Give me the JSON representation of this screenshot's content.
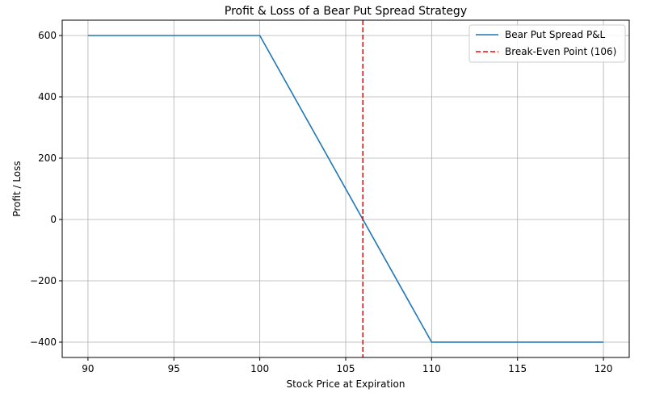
{
  "chart_data": {
    "type": "line",
    "title": "Profit & Loss of a Bear Put Spread Strategy",
    "xlabel": "Stock Price at Expiration",
    "ylabel": "Profit / Loss",
    "xlim": [
      88.5,
      121.5
    ],
    "ylim": [
      -450,
      650
    ],
    "x_ticks": [
      90,
      95,
      100,
      105,
      110,
      115,
      120
    ],
    "y_ticks": [
      -400,
      -200,
      0,
      200,
      400,
      600
    ],
    "x_tick_labels": [
      "90",
      "95",
      "100",
      "105",
      "110",
      "115",
      "120"
    ],
    "y_tick_labels": [
      "−400",
      "−200",
      "0",
      "200",
      "400",
      "600"
    ],
    "grid": true,
    "legend_position": "top-right",
    "series": [
      {
        "name": "Bear Put Spread P&L",
        "color": "#1f77b4",
        "style": "solid",
        "x": [
          90,
          100,
          110,
          120
        ],
        "y": [
          600,
          600,
          -400,
          -400
        ]
      }
    ],
    "vlines": [
      {
        "name": "Break-Even Point (106)",
        "x": 106,
        "color": "#ff0000",
        "style": "dashed"
      }
    ]
  }
}
